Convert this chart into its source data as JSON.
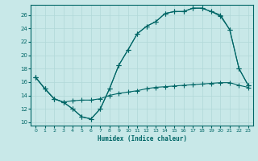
{
  "xlabel": "Humidex (Indice chaleur)",
  "bg_color": "#c8e8e8",
  "grid_color": "#b0d8d8",
  "line_color": "#006666",
  "xlim": [
    -0.5,
    23.5
  ],
  "ylim": [
    9.5,
    27.5
  ],
  "xticks": [
    0,
    1,
    2,
    3,
    4,
    5,
    6,
    7,
    8,
    9,
    10,
    11,
    12,
    13,
    14,
    15,
    16,
    17,
    18,
    19,
    20,
    21,
    22,
    23
  ],
  "yticks": [
    10,
    12,
    14,
    16,
    18,
    20,
    22,
    24,
    26
  ],
  "line1_x": [
    0,
    1,
    2,
    3,
    4,
    5,
    6,
    7,
    8,
    9,
    10,
    11,
    12,
    13,
    14,
    15,
    16,
    17,
    18,
    19,
    20,
    21,
    22,
    23
  ],
  "line1_y": [
    16.7,
    15.0,
    13.5,
    13.0,
    12.0,
    10.8,
    10.5,
    12.0,
    15.0,
    18.5,
    20.8,
    23.2,
    24.3,
    25.0,
    26.2,
    26.5,
    26.5,
    27.0,
    27.0,
    26.5,
    26.0,
    23.8,
    18.0,
    15.5
  ],
  "line2_x": [
    0,
    1,
    2,
    3,
    4,
    5,
    6,
    7,
    8,
    9,
    10,
    11,
    12,
    13,
    14,
    15,
    16,
    17,
    18,
    19,
    20,
    21,
    22,
    23
  ],
  "line2_y": [
    16.7,
    15.0,
    13.5,
    13.0,
    13.2,
    13.3,
    13.3,
    13.5,
    14.0,
    14.3,
    14.5,
    14.7,
    15.0,
    15.2,
    15.3,
    15.4,
    15.5,
    15.6,
    15.7,
    15.8,
    15.9,
    15.9,
    15.5,
    15.2
  ],
  "line3_x": [
    0,
    1,
    2,
    3,
    4,
    5,
    6,
    7,
    8,
    9,
    10,
    11,
    12,
    13,
    14,
    15,
    16,
    17,
    18,
    19,
    20,
    21,
    22,
    23
  ],
  "line3_y": [
    16.7,
    15.0,
    13.5,
    13.0,
    12.0,
    10.8,
    10.5,
    12.0,
    15.0,
    18.5,
    20.8,
    23.2,
    24.3,
    25.0,
    26.2,
    26.5,
    26.5,
    27.0,
    27.0,
    26.5,
    25.8,
    23.8,
    18.0,
    15.5
  ]
}
